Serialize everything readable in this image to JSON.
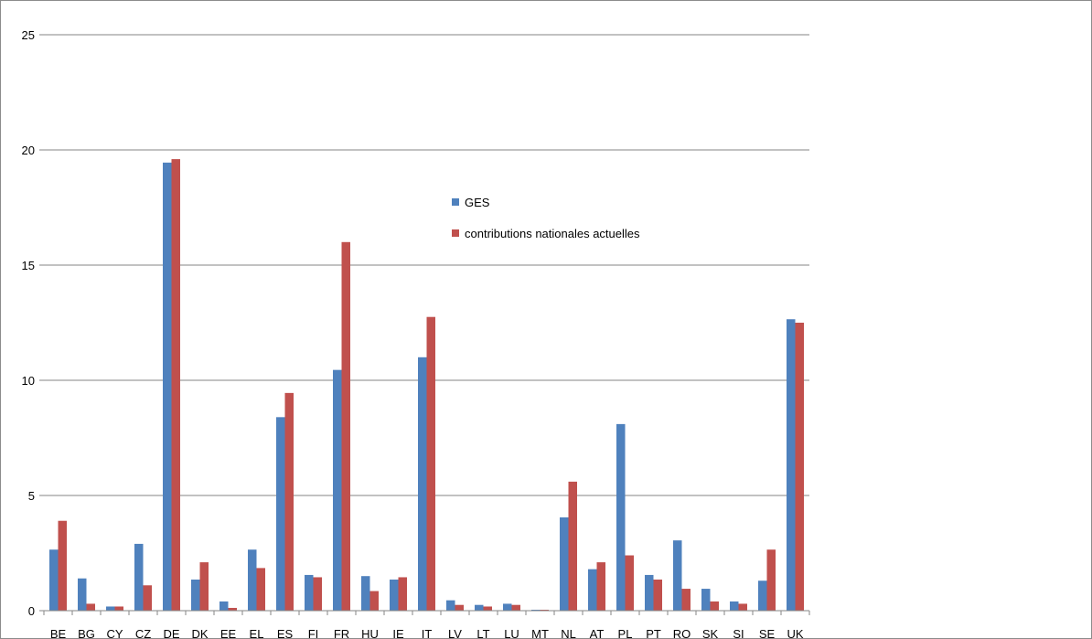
{
  "chart_data": {
    "type": "bar",
    "categories": [
      "BE",
      "BG",
      "CY",
      "CZ",
      "DE",
      "DK",
      "EE",
      "EL",
      "ES",
      "FI",
      "FR",
      "HU",
      "IE",
      "IT",
      "LV",
      "LT",
      "LU",
      "MT",
      "NL",
      "AT",
      "PL",
      "PT",
      "RO",
      "SK",
      "SI",
      "SE",
      "UK"
    ],
    "series": [
      {
        "name": "GES",
        "color": "#4f81bd",
        "values": [
          2.65,
          1.4,
          0.18,
          2.9,
          19.45,
          1.35,
          0.4,
          2.65,
          8.4,
          1.55,
          10.45,
          1.5,
          1.35,
          11.0,
          0.45,
          0.25,
          0.3,
          0.04,
          4.05,
          1.8,
          8.1,
          1.55,
          3.05,
          0.95,
          0.4,
          1.3,
          12.65
        ]
      },
      {
        "name": "contributions nationales actuelles",
        "color": "#c0504d",
        "values": [
          3.9,
          0.3,
          0.18,
          1.1,
          19.6,
          2.1,
          0.12,
          1.85,
          9.45,
          1.45,
          16.0,
          0.85,
          1.45,
          12.75,
          0.25,
          0.18,
          0.25,
          0.04,
          5.6,
          2.1,
          2.4,
          1.35,
          0.95,
          0.4,
          0.3,
          2.65,
          12.5
        ]
      }
    ],
    "ylim": [
      0,
      25
    ],
    "yticks": [
      0,
      5,
      10,
      15,
      20,
      25
    ],
    "grid": true,
    "legend": "inside-upper-center",
    "title": "",
    "xlabel": "",
    "ylabel": ""
  }
}
